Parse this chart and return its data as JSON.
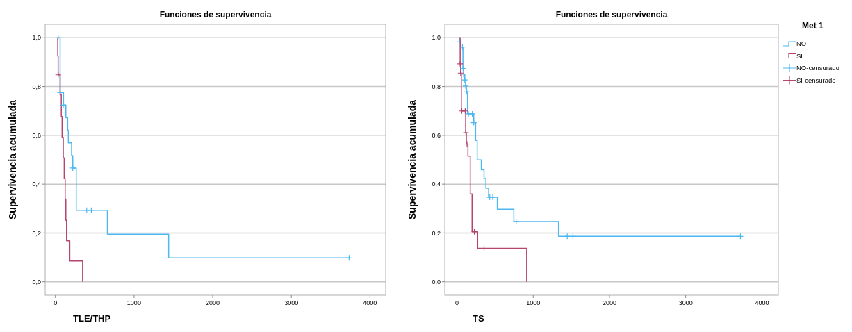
{
  "chart_data": [
    {
      "type": "step",
      "title": "Funciones de supervivencia",
      "xlabel": "TLE/THP",
      "ylabel": "Supervivencia acumulada",
      "xlim": [
        -130,
        4200
      ],
      "ylim": [
        -0.055,
        1.055
      ],
      "xticks": [
        0,
        1000,
        2000,
        3000,
        4000
      ],
      "yticks": [
        {
          "value": 0,
          "label": "0,0"
        },
        {
          "value": 0.2,
          "label": "0,2"
        },
        {
          "value": 0.4,
          "label": "0,4"
        },
        {
          "value": 0.6,
          "label": "0,6"
        },
        {
          "value": 0.8,
          "label": "0,8"
        },
        {
          "value": 1,
          "label": "1,0"
        }
      ],
      "grid": "y",
      "legend": false,
      "series": [
        {
          "type": "step",
          "color": "#4db8f0",
          "x": [
            35,
            60,
            103,
            133,
            156,
            165,
            206,
            221,
            265,
            661,
            1440,
            3735
          ],
          "values": [
            1.0,
            0.775,
            0.724,
            0.672,
            0.621,
            0.569,
            0.517,
            0.466,
            0.293,
            0.195,
            0.098,
            0.098
          ]
        },
        {
          "type": "step",
          "color": "#b5456f",
          "x": [
            30,
            30,
            35,
            60,
            75,
            85,
            100,
            112,
            124,
            133,
            142,
            183,
            346
          ],
          "values": [
            1.0,
            0.925,
            0.848,
            0.766,
            0.677,
            0.592,
            0.508,
            0.423,
            0.339,
            0.252,
            0.168,
            0.085,
            0
          ]
        },
        {
          "type": "scatter",
          "marker": "cross",
          "color": "#4db8f0",
          "x": [
            35,
            60,
            100,
            221,
            398,
            457,
            3735
          ],
          "values": [
            1.0,
            0.775,
            0.724,
            0.466,
            0.293,
            0.293,
            0.098
          ]
        },
        {
          "type": "scatter",
          "marker": "cross",
          "color": "#b5456f",
          "x": [
            35
          ],
          "values": [
            0.848
          ]
        }
      ]
    },
    {
      "type": "step",
      "title": "Funciones de supervivencia",
      "xlabel": "TS",
      "ylabel": "Supervivencia acumulada",
      "xlim": [
        -160,
        4215
      ],
      "ylim": [
        -0.055,
        1.055
      ],
      "xticks": [
        0,
        1000,
        2000,
        3000,
        4000
      ],
      "yticks": [
        {
          "value": 0,
          "label": "0,0"
        },
        {
          "value": 0.2,
          "label": "0,2"
        },
        {
          "value": 0.4,
          "label": "0,4"
        },
        {
          "value": 0.6,
          "label": "0,6"
        },
        {
          "value": 0.8,
          "label": "0,8"
        },
        {
          "value": 1,
          "label": "1,0"
        }
      ],
      "grid": "y",
      "legend": "right",
      "legend_title": "Met 1",
      "series": [
        {
          "name": "NO",
          "type": "step",
          "color": "#4db8f0",
          "x": [
            24,
            33,
            48,
            78,
            87,
            102,
            114,
            123,
            138,
            220,
            244,
            265,
            319,
            355,
            379,
            415,
            529,
            746,
            1332,
            3718
          ],
          "values": [
            1.0,
            0.983,
            0.962,
            0.874,
            0.851,
            0.827,
            0.802,
            0.778,
            0.688,
            0.652,
            0.579,
            0.499,
            0.459,
            0.423,
            0.383,
            0.346,
            0.297,
            0.247,
            0.186,
            0.186
          ]
        },
        {
          "name": "SI",
          "type": "step",
          "color": "#b5456f",
          "x": [
            24,
            42,
            48,
            57,
            114,
            123,
            144,
            174,
            198,
            271,
            914
          ],
          "values": [
            1.0,
            0.893,
            0.855,
            0.7,
            0.611,
            0.564,
            0.515,
            0.36,
            0.205,
            0.137,
            0
          ]
        },
        {
          "name": "NO-censurado",
          "type": "scatter",
          "marker": "cross",
          "color": "#4db8f0",
          "x": [
            30,
            72,
            80,
            87,
            102,
            114,
            129,
            150,
            201,
            220,
            430,
            469,
            776,
            1446,
            1521,
            3718
          ],
          "values": [
            0.983,
            0.962,
            0.874,
            0.851,
            0.827,
            0.802,
            0.778,
            0.688,
            0.688,
            0.652,
            0.346,
            0.346,
            0.247,
            0.186,
            0.186,
            0.186
          ]
        },
        {
          "name": "SI-censurado",
          "type": "scatter",
          "marker": "cross",
          "color": "#b5456f",
          "x": [
            42,
            48,
            63,
            108,
            117,
            132,
            228,
            355
          ],
          "values": [
            0.893,
            0.855,
            0.7,
            0.7,
            0.611,
            0.564,
            0.205,
            0.137
          ]
        }
      ]
    }
  ]
}
